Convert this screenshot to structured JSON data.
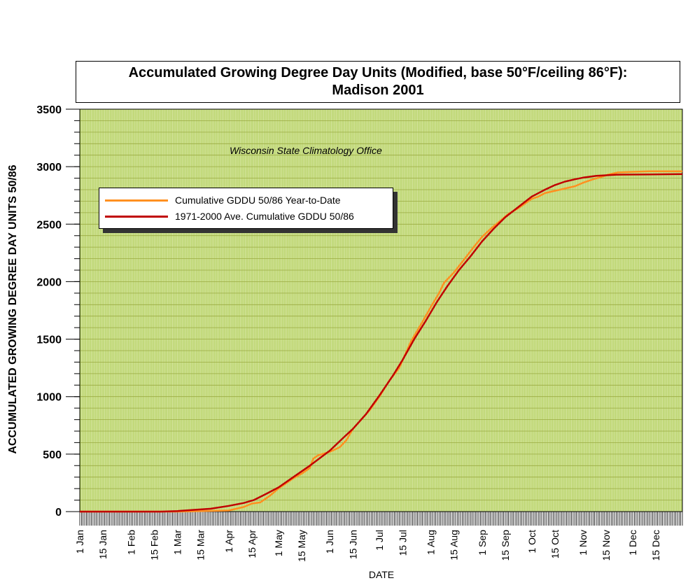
{
  "chart_data": {
    "type": "line",
    "title": [
      "Accumulated Growing Degree Day Units (Modified, base 50°F/ceiling 86°F):",
      "Madison 2001"
    ],
    "xlabel": "DATE",
    "ylabel": "ACCUMULATED GROWING DEGREE DAY UNITS 50/86",
    "ylim": [
      0,
      3500
    ],
    "yticks": [
      0,
      500,
      1000,
      1500,
      2000,
      2500,
      3000,
      3500
    ],
    "xlim_day": [
      1,
      365
    ],
    "xticks": [
      {
        "label": "1 Jan",
        "day": 1
      },
      {
        "label": "15 Jan",
        "day": 15
      },
      {
        "label": "1 Feb",
        "day": 32
      },
      {
        "label": "15 Feb",
        "day": 46
      },
      {
        "label": "1 Mar",
        "day": 60
      },
      {
        "label": "15 Mar",
        "day": 74
      },
      {
        "label": "1 Apr",
        "day": 91
      },
      {
        "label": "15 Apr",
        "day": 105
      },
      {
        "label": "1 May",
        "day": 121
      },
      {
        "label": "15 May",
        "day": 135
      },
      {
        "label": "1 Jun",
        "day": 152
      },
      {
        "label": "15 Jun",
        "day": 166
      },
      {
        "label": "1 Jul",
        "day": 182
      },
      {
        "label": "15 Jul",
        "day": 196
      },
      {
        "label": "1 Aug",
        "day": 213
      },
      {
        "label": "15 Aug",
        "day": 227
      },
      {
        "label": "1 Sep",
        "day": 244
      },
      {
        "label": "15 Sep",
        "day": 258
      },
      {
        "label": "1 Oct",
        "day": 274
      },
      {
        "label": "15 Oct",
        "day": 288
      },
      {
        "label": "1 Nov",
        "day": 305
      },
      {
        "label": "15 Nov",
        "day": 319
      },
      {
        "label": "1 Dec",
        "day": 335
      },
      {
        "label": "15 Dec",
        "day": 349
      }
    ],
    "annotation": "Wisconsin State Climatology Office",
    "legend_position": "upper-left",
    "grid": true,
    "series": [
      {
        "name": "Cumulative GDDU 50/86 Year-to-Date",
        "color": "#ff9020",
        "points": [
          [
            1,
            0
          ],
          [
            60,
            0
          ],
          [
            75,
            5
          ],
          [
            91,
            10
          ],
          [
            100,
            40
          ],
          [
            105,
            70
          ],
          [
            110,
            80
          ],
          [
            116,
            140
          ],
          [
            121,
            200
          ],
          [
            125,
            240
          ],
          [
            130,
            290
          ],
          [
            135,
            330
          ],
          [
            140,
            380
          ],
          [
            142,
            460
          ],
          [
            145,
            490
          ],
          [
            152,
            520
          ],
          [
            158,
            560
          ],
          [
            162,
            620
          ],
          [
            166,
            720
          ],
          [
            171,
            800
          ],
          [
            176,
            880
          ],
          [
            182,
            1000
          ],
          [
            188,
            1140
          ],
          [
            194,
            1250
          ],
          [
            201,
            1480
          ],
          [
            208,
            1650
          ],
          [
            213,
            1780
          ],
          [
            218,
            1900
          ],
          [
            221,
            1990
          ],
          [
            227,
            2080
          ],
          [
            233,
            2190
          ],
          [
            240,
            2320
          ],
          [
            244,
            2390
          ],
          [
            250,
            2470
          ],
          [
            255,
            2530
          ],
          [
            260,
            2590
          ],
          [
            266,
            2640
          ],
          [
            270,
            2680
          ],
          [
            274,
            2720
          ],
          [
            278,
            2740
          ],
          [
            282,
            2770
          ],
          [
            288,
            2790
          ],
          [
            294,
            2810
          ],
          [
            300,
            2830
          ],
          [
            305,
            2860
          ],
          [
            311,
            2890
          ],
          [
            316,
            2910
          ],
          [
            320,
            2930
          ],
          [
            326,
            2950
          ],
          [
            335,
            2955
          ],
          [
            345,
            2960
          ],
          [
            365,
            2960
          ]
        ]
      },
      {
        "name": "1971-2000 Ave. Cumulative GDDU 50/86",
        "color": "#c00000",
        "points": [
          [
            1,
            0
          ],
          [
            50,
            0
          ],
          [
            60,
            5
          ],
          [
            70,
            15
          ],
          [
            80,
            25
          ],
          [
            91,
            50
          ],
          [
            100,
            75
          ],
          [
            106,
            100
          ],
          [
            113,
            150
          ],
          [
            121,
            210
          ],
          [
            130,
            300
          ],
          [
            140,
            400
          ],
          [
            152,
            530
          ],
          [
            160,
            640
          ],
          [
            166,
            720
          ],
          [
            174,
            850
          ],
          [
            182,
            1010
          ],
          [
            190,
            1180
          ],
          [
            196,
            1320
          ],
          [
            203,
            1500
          ],
          [
            210,
            1660
          ],
          [
            217,
            1830
          ],
          [
            223,
            1960
          ],
          [
            230,
            2100
          ],
          [
            237,
            2220
          ],
          [
            244,
            2350
          ],
          [
            251,
            2460
          ],
          [
            258,
            2560
          ],
          [
            266,
            2650
          ],
          [
            274,
            2740
          ],
          [
            282,
            2800
          ],
          [
            288,
            2840
          ],
          [
            294,
            2870
          ],
          [
            300,
            2890
          ],
          [
            305,
            2905
          ],
          [
            313,
            2920
          ],
          [
            325,
            2930
          ],
          [
            345,
            2933
          ],
          [
            365,
            2935
          ]
        ]
      }
    ]
  }
}
